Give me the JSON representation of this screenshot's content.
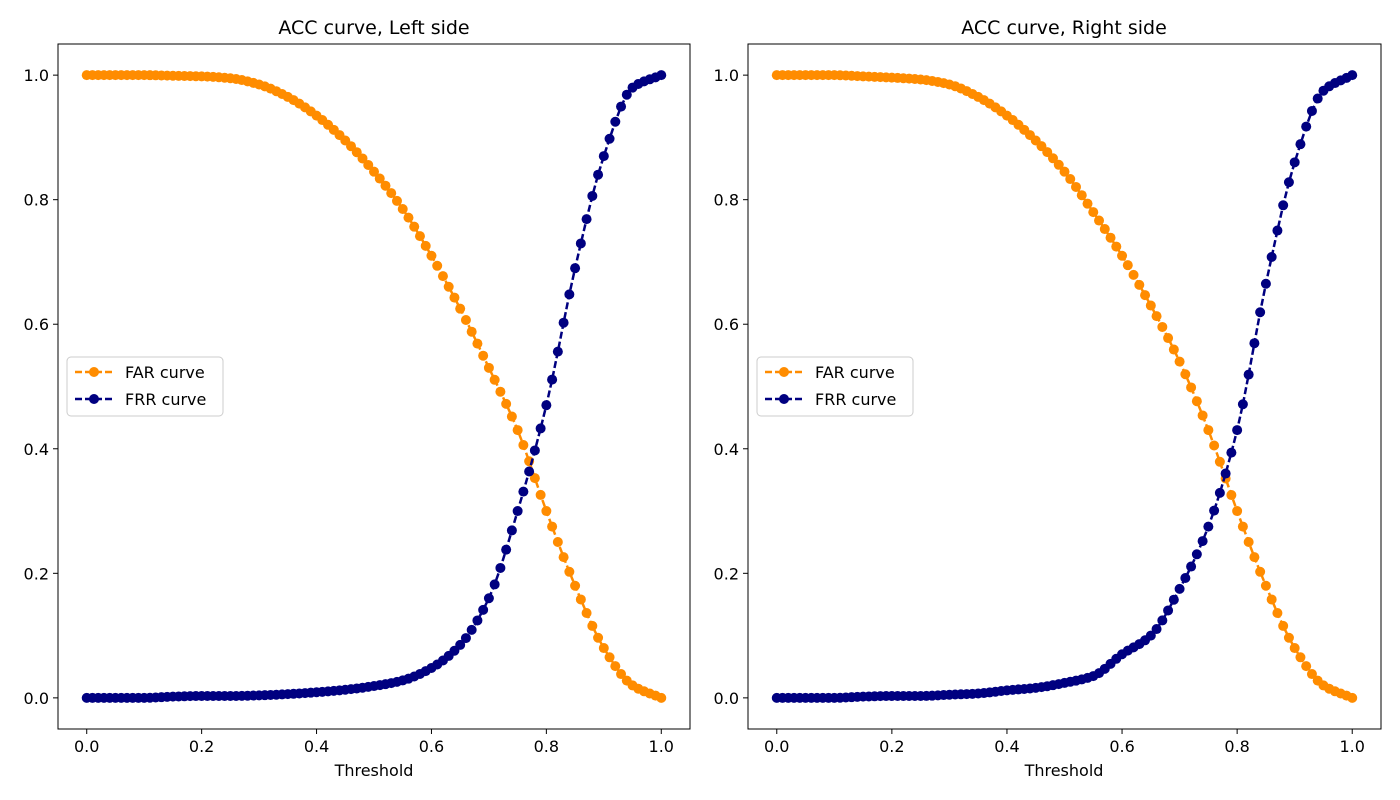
{
  "charts": [
    {
      "title": "ACC curve, Left side",
      "xlabel": "Threshold",
      "legend": [
        "FAR curve",
        "FRR curve"
      ],
      "xticks": [
        "0.0",
        "0.2",
        "0.4",
        "0.6",
        "0.8",
        "1.0"
      ],
      "yticks": [
        "0.0",
        "0.2",
        "0.4",
        "0.6",
        "0.8",
        "1.0"
      ]
    },
    {
      "title": "ACC curve, Right side",
      "xlabel": "Threshold",
      "legend": [
        "FAR curve",
        "FRR curve"
      ],
      "xticks": [
        "0.0",
        "0.2",
        "0.4",
        "0.6",
        "0.8",
        "1.0"
      ],
      "yticks": [
        "0.0",
        "0.2",
        "0.4",
        "0.6",
        "0.8",
        "1.0"
      ]
    }
  ],
  "colors": {
    "far": "#ff8c00",
    "frr": "#000080"
  },
  "chart_data": [
    {
      "type": "line",
      "title": "ACC curve, Left side",
      "xlabel": "Threshold",
      "ylabel": "",
      "xlim": [
        -0.05,
        1.05
      ],
      "ylim": [
        -0.05,
        1.05
      ],
      "grid": false,
      "legend_position": "center-left",
      "marker": "circle",
      "linestyle": "dashed",
      "x": [
        0.0,
        0.05,
        0.1,
        0.15,
        0.2,
        0.25,
        0.3,
        0.35,
        0.4,
        0.45,
        0.5,
        0.55,
        0.6,
        0.65,
        0.7,
        0.75,
        0.8,
        0.85,
        0.9,
        0.95,
        1.0
      ],
      "series": [
        {
          "name": "FAR curve",
          "color": "#ff8c00",
          "values": [
            1.0,
            1.0,
            1.0,
            0.999,
            0.998,
            0.995,
            0.985,
            0.965,
            0.935,
            0.895,
            0.845,
            0.785,
            0.71,
            0.625,
            0.53,
            0.43,
            0.3,
            0.18,
            0.08,
            0.02,
            0.0
          ]
        },
        {
          "name": "FRR curve",
          "color": "#000080",
          "values": [
            0.0,
            0.0,
            0.0,
            0.002,
            0.003,
            0.003,
            0.004,
            0.006,
            0.009,
            0.013,
            0.019,
            0.028,
            0.048,
            0.085,
            0.16,
            0.3,
            0.47,
            0.69,
            0.87,
            0.98,
            1.0
          ]
        }
      ]
    },
    {
      "type": "line",
      "title": "ACC curve, Right side",
      "xlabel": "Threshold",
      "ylabel": "",
      "xlim": [
        -0.05,
        1.05
      ],
      "ylim": [
        -0.05,
        1.05
      ],
      "grid": false,
      "legend_position": "center-left",
      "marker": "circle",
      "linestyle": "dashed",
      "x": [
        0.0,
        0.05,
        0.1,
        0.15,
        0.2,
        0.25,
        0.3,
        0.35,
        0.4,
        0.45,
        0.5,
        0.55,
        0.6,
        0.65,
        0.7,
        0.75,
        0.8,
        0.85,
        0.9,
        0.95,
        1.0
      ],
      "series": [
        {
          "name": "FAR curve",
          "color": "#ff8c00",
          "values": [
            1.0,
            1.0,
            1.0,
            0.998,
            0.996,
            0.993,
            0.985,
            0.965,
            0.935,
            0.895,
            0.845,
            0.78,
            0.71,
            0.63,
            0.54,
            0.43,
            0.3,
            0.18,
            0.08,
            0.02,
            0.0
          ]
        },
        {
          "name": "FRR curve",
          "color": "#000080",
          "values": [
            0.0,
            0.0,
            0.0,
            0.002,
            0.003,
            0.003,
            0.005,
            0.007,
            0.012,
            0.016,
            0.024,
            0.035,
            0.07,
            0.1,
            0.175,
            0.275,
            0.43,
            0.665,
            0.86,
            0.975,
            1.0
          ]
        }
      ]
    }
  ]
}
